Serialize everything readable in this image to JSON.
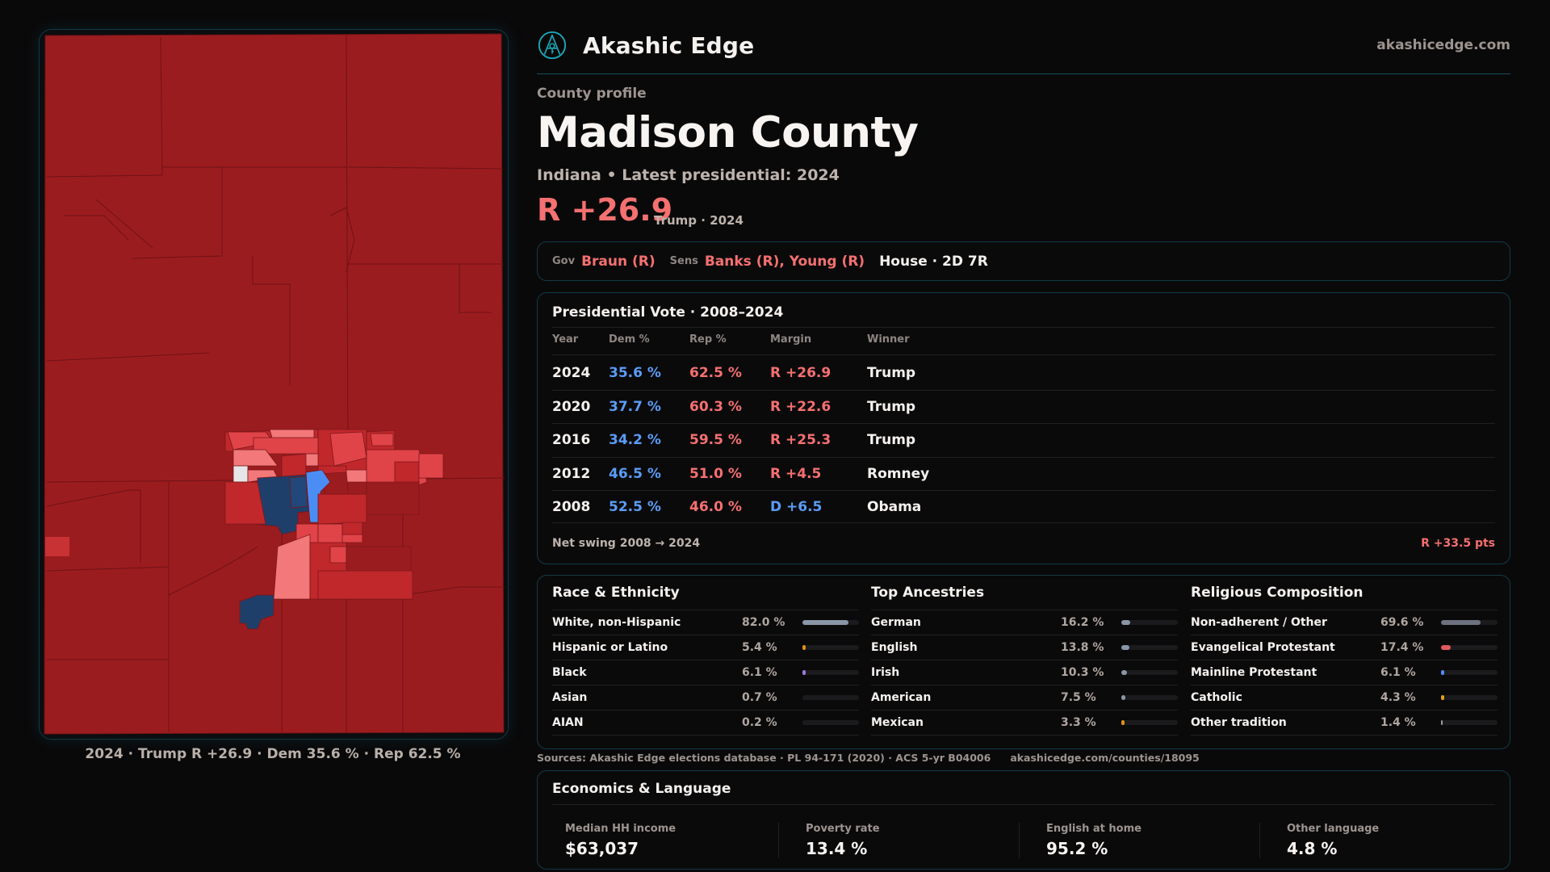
{
  "brand": {
    "name": "Akashic Edge",
    "site": "akashicedge.com",
    "logo_icon": "compass-key-emblem-icon",
    "accent": "#1aa7b5"
  },
  "header": {
    "kicker": "County profile",
    "title": "Madison County",
    "subtitle": "Indiana • Latest presidential: 2024",
    "margin": "R +26.9",
    "margin_note": "Trump · 2024"
  },
  "officials": {
    "gov_label": "Gov",
    "gov_value": "Braun (R)",
    "sens_label": "Sens",
    "sens_value": "Banks (R), Young (R)",
    "house": "House · 2D 7R"
  },
  "map": {
    "caption": "2024 · Trump R +26.9 · Dem 35.6 % · Rep 62.5 %",
    "colors": {
      "safe_r": "#9b1c1f",
      "lean_r": "#c0282c",
      "likely_r": "#e04448",
      "tilt_r": "#f2787a",
      "tossup": "#e6e6e8",
      "likely_d": "#4a8ef5",
      "safe_d": "#1f3f6b"
    }
  },
  "presidential": {
    "title": "Presidential Vote · 2008–2024",
    "columns": [
      "Year",
      "Dem %",
      "Rep %",
      "Margin",
      "Winner"
    ],
    "rows": [
      {
        "year": "2024",
        "dem": "35.6 %",
        "rep": "62.5 %",
        "margin": "R +26.9",
        "party": "R",
        "winner": "Trump"
      },
      {
        "year": "2020",
        "dem": "37.7 %",
        "rep": "60.3 %",
        "margin": "R +22.6",
        "party": "R",
        "winner": "Trump"
      },
      {
        "year": "2016",
        "dem": "34.2 %",
        "rep": "59.5 %",
        "margin": "R +25.3",
        "party": "R",
        "winner": "Trump"
      },
      {
        "year": "2012",
        "dem": "46.5 %",
        "rep": "51.0 %",
        "margin": "R +4.5",
        "party": "R",
        "winner": "Romney"
      },
      {
        "year": "2008",
        "dem": "52.5 %",
        "rep": "46.0 %",
        "margin": "D +6.5",
        "party": "D",
        "winner": "Obama"
      }
    ],
    "swing_label": "Net swing 2008 → 2024",
    "swing_value": "R +33.5 pts",
    "colors": {
      "dem": "#5a9cf5",
      "rep": "#f57070"
    }
  },
  "demographics": [
    {
      "title": "Race & Ethnicity",
      "items": [
        {
          "label": "White, non-Hispanic",
          "value": "82.0 %",
          "pct": 82.0,
          "color": "#8a96a8"
        },
        {
          "label": "Hispanic or Latino",
          "value": "5.4 %",
          "pct": 5.4,
          "color": "#e0901a"
        },
        {
          "label": "Black",
          "value": "6.1 %",
          "pct": 6.1,
          "color": "#9a78e0"
        },
        {
          "label": "Asian",
          "value": "0.7 %",
          "pct": 0.7,
          "color": "#2a9d8f"
        },
        {
          "label": "AIAN",
          "value": "0.2 %",
          "pct": 0.2,
          "color": "#888888"
        }
      ]
    },
    {
      "title": "Top Ancestries",
      "items": [
        {
          "label": "German",
          "value": "16.2 %",
          "pct": 16.2,
          "color": "#8a96a8"
        },
        {
          "label": "English",
          "value": "13.8 %",
          "pct": 13.8,
          "color": "#8a96a8"
        },
        {
          "label": "Irish",
          "value": "10.3 %",
          "pct": 10.3,
          "color": "#8a96a8"
        },
        {
          "label": "American",
          "value": "7.5 %",
          "pct": 7.5,
          "color": "#8a96a8"
        },
        {
          "label": "Mexican",
          "value": "3.3 %",
          "pct": 3.3,
          "color": "#e0901a"
        }
      ]
    },
    {
      "title": "Religious Composition",
      "items": [
        {
          "label": "Non-adherent / Other",
          "value": "69.6 %",
          "pct": 69.6,
          "color": "#6e7280"
        },
        {
          "label": "Evangelical Protestant",
          "value": "17.4 %",
          "pct": 17.4,
          "color": "#e05a5e"
        },
        {
          "label": "Mainline Protestant",
          "value": "6.1 %",
          "pct": 6.1,
          "color": "#4a8ef5"
        },
        {
          "label": "Catholic",
          "value": "4.3 %",
          "pct": 4.3,
          "color": "#e0a01a"
        },
        {
          "label": "Other tradition",
          "value": "1.4 %",
          "pct": 1.4,
          "color": "#9a9a9a"
        }
      ]
    }
  ],
  "economics": {
    "title": "Economics & Language",
    "stats": [
      {
        "label": "Median HH income",
        "value": "$63,037"
      },
      {
        "label": "Poverty rate",
        "value": "13.4 %"
      },
      {
        "label": "English at home",
        "value": "95.2 %"
      },
      {
        "label": "Other language",
        "value": "4.8 %"
      }
    ]
  },
  "footer": {
    "sources": "Sources: Akashic Edge elections database · PL 94-171 (2020) · ACS 5-yr B04006",
    "url": "akashicedge.com/counties/18095"
  }
}
